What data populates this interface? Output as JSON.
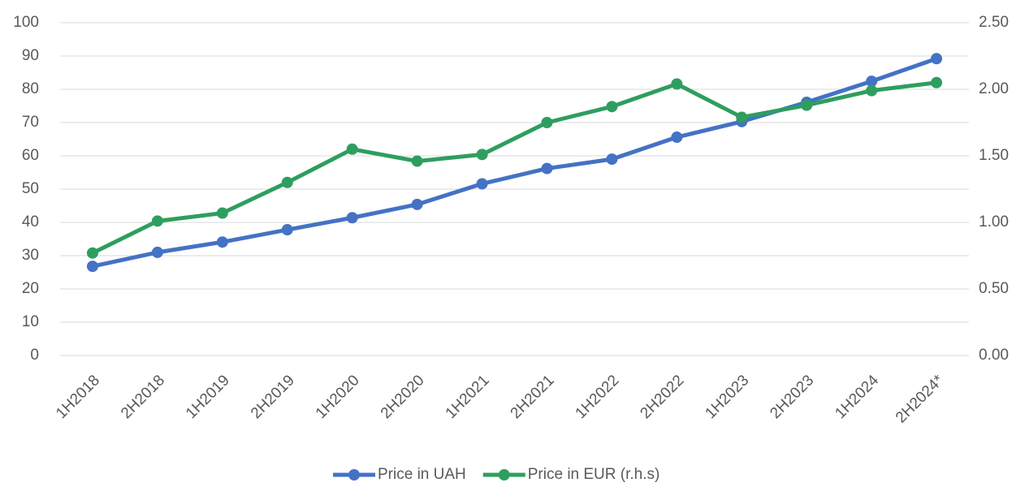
{
  "chart_data": {
    "type": "line",
    "categories": [
      "1H2018",
      "2H2018",
      "1H2019",
      "2H2019",
      "1H2020",
      "2H2020",
      "1H2021",
      "2H2021",
      "1H2022",
      "2H2022",
      "1H2023",
      "2H2023",
      "1H2024",
      "2H2024*"
    ],
    "series": [
      {
        "name": "Price in UAH",
        "color": "#4472c4",
        "values": [
          26.8,
          31,
          34.1,
          37.8,
          41.4,
          45.4,
          51.6,
          56.2,
          59,
          65.6,
          70.3,
          76.1,
          82.4,
          89.2
        ]
      },
      {
        "name": "Price in EUR (r.h.s)",
        "color": "#2e9e5e",
        "axis": "y2",
        "values": [
          0.77,
          1.01,
          1.07,
          1.3,
          1.55,
          1.46,
          1.51,
          1.75,
          1.87,
          2.04,
          1.79,
          1.88,
          1.99,
          2.05
        ]
      }
    ],
    "ylim": [
      0,
      100
    ],
    "yticks": [
      0,
      10,
      20,
      30,
      40,
      50,
      60,
      70,
      80,
      90,
      100
    ],
    "y2lim": [
      0,
      2.5
    ],
    "y2ticks": [
      {
        "value": 0,
        "label": "0.00"
      },
      {
        "value": 0.5,
        "label": "0.50"
      },
      {
        "value": 1,
        "label": "1.00"
      },
      {
        "value": 1.5,
        "label": "1.50"
      },
      {
        "value": 2,
        "label": "2.00"
      },
      {
        "value": 2.5,
        "label": "2.50"
      }
    ],
    "grid": true,
    "legend": "bottom"
  }
}
